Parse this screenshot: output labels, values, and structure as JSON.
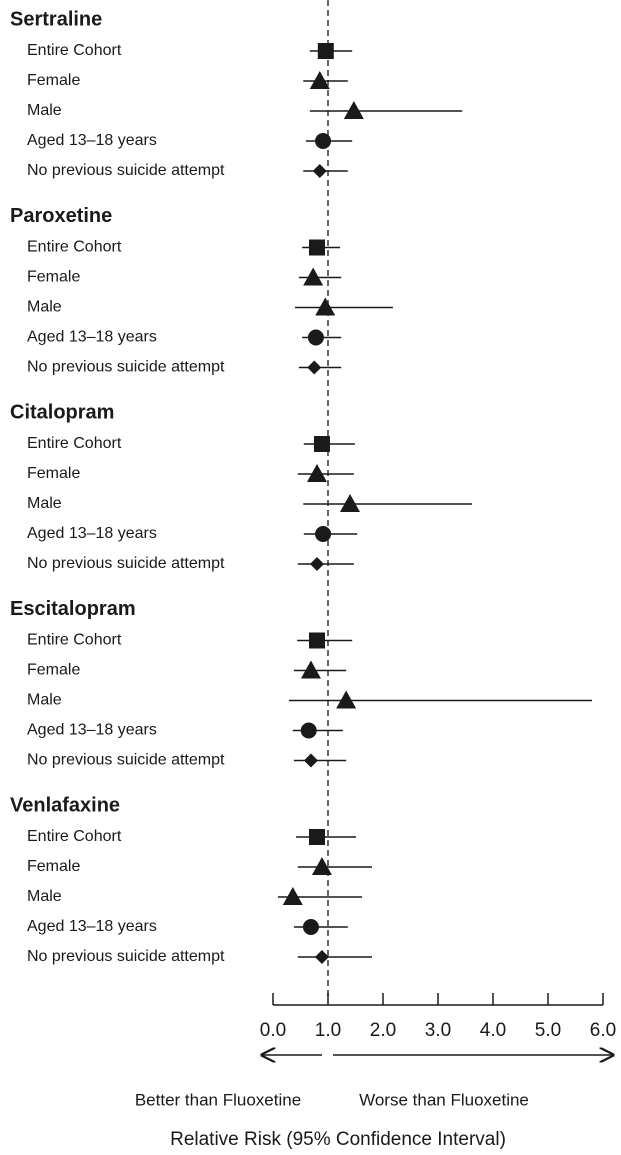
{
  "chart_data": {
    "type": "forest",
    "xlabel": "Relative Risk (95% Confidence Interval)",
    "left_note": "Better than Fluoxetine",
    "right_note": "Worse than Fluoxetine",
    "xlim": [
      0,
      6
    ],
    "xticks": [
      {
        "value": 0,
        "label": "0.0"
      },
      {
        "value": 1,
        "label": "1.0"
      },
      {
        "value": 2,
        "label": "2.0"
      },
      {
        "value": 3,
        "label": "3.0"
      },
      {
        "value": 4,
        "label": "4.0"
      },
      {
        "value": 5,
        "label": "5.0"
      },
      {
        "value": 6,
        "label": "6.0"
      }
    ],
    "reference": 1,
    "color": "#1a1a1a",
    "markers": [
      "square",
      "triangle",
      "triangle",
      "circle",
      "diamond"
    ],
    "groups": [
      {
        "name": "Sertraline",
        "categories": [
          "Entire Cohort",
          "Female",
          "Male",
          "Aged 13–18 years",
          "No previous suicide attempt"
        ],
        "values": [
          0.96,
          0.85,
          1.47,
          0.91,
          0.85
        ],
        "lower": [
          0.67,
          0.55,
          0.67,
          0.6,
          0.55
        ],
        "upper": [
          1.44,
          1.36,
          3.44,
          1.44,
          1.36
        ]
      },
      {
        "name": "Paroxetine",
        "categories": [
          "Entire Cohort",
          "Female",
          "Male",
          "Aged 13–18 years",
          "No previous suicide attempt"
        ],
        "values": [
          0.8,
          0.73,
          0.95,
          0.78,
          0.75
        ],
        "lower": [
          0.53,
          0.47,
          0.4,
          0.53,
          0.47
        ],
        "upper": [
          1.22,
          1.24,
          2.18,
          1.24,
          1.24
        ]
      },
      {
        "name": "Citalopram",
        "categories": [
          "Entire Cohort",
          "Female",
          "Male",
          "Aged 13–18 years",
          "No previous suicide attempt"
        ],
        "values": [
          0.89,
          0.8,
          1.4,
          0.91,
          0.8
        ],
        "lower": [
          0.56,
          0.45,
          0.55,
          0.56,
          0.45
        ],
        "upper": [
          1.49,
          1.47,
          3.62,
          1.53,
          1.47
        ]
      },
      {
        "name": "Escitalopram",
        "categories": [
          "Entire Cohort",
          "Female",
          "Male",
          "Aged 13–18 years",
          "No previous suicide attempt"
        ],
        "values": [
          0.8,
          0.69,
          1.33,
          0.65,
          0.69
        ],
        "lower": [
          0.44,
          0.38,
          0.29,
          0.36,
          0.38
        ],
        "upper": [
          1.44,
          1.33,
          5.8,
          1.27,
          1.33
        ]
      },
      {
        "name": "Venlafaxine",
        "categories": [
          "Entire Cohort",
          "Female",
          "Male",
          "Aged 13–18 years",
          "No previous suicide attempt"
        ],
        "values": [
          0.8,
          0.89,
          0.36,
          0.69,
          0.89
        ],
        "lower": [
          0.42,
          0.45,
          0.09,
          0.38,
          0.45
        ],
        "upper": [
          1.51,
          1.8,
          1.62,
          1.36,
          1.8
        ]
      }
    ]
  }
}
